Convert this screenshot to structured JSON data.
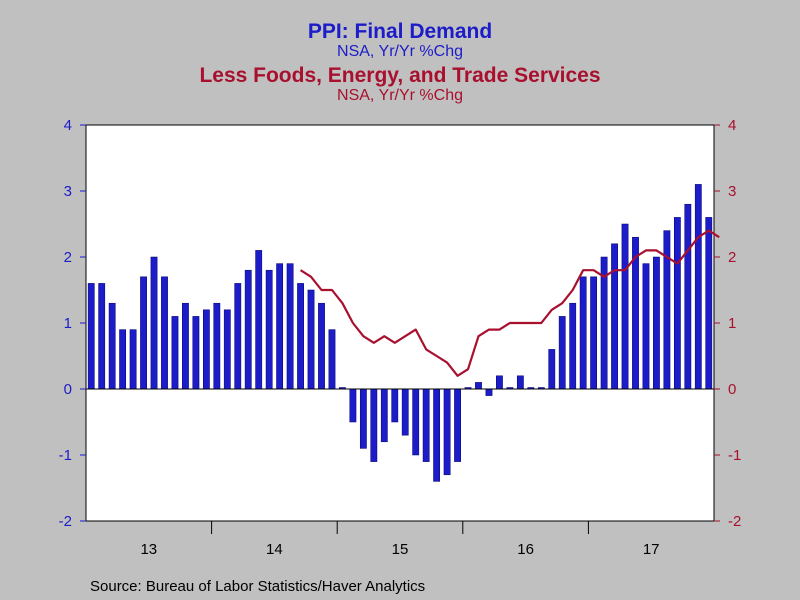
{
  "title": "PPI: Final Demand",
  "subtitle": "NSA, Yr/Yr %Chg",
  "title2": "Less Foods, Energy, and Trade Services",
  "subtitle2": "NSA, Yr/Yr %Chg",
  "source": "Source:  Bureau of Labor Statistics/Haver Analytics",
  "colors": {
    "bar": "#1c1cc8",
    "line": "#a8102e",
    "plot_bg": "#ffffff",
    "page_bg": "#c0c0c0"
  },
  "chart_data": {
    "type": "bar",
    "x_ticks": [
      "13",
      "14",
      "15",
      "16",
      "17"
    ],
    "ylim": [
      -2,
      4
    ],
    "y_ticks": [
      "4",
      "3",
      "2",
      "1",
      "0",
      "-1",
      "-2"
    ],
    "y2_ticks": [
      "4",
      "3",
      "2",
      "1",
      "0",
      "-1",
      "-2"
    ],
    "grid": false,
    "series": [
      {
        "type": "bar",
        "axis": "left",
        "values": [
          1.6,
          1.6,
          1.3,
          0.9,
          0.9,
          1.7,
          2.0,
          1.7,
          1.1,
          1.3,
          1.1,
          1.2,
          1.3,
          1.2,
          1.6,
          1.8,
          2.1,
          1.8,
          1.9,
          1.9,
          1.6,
          1.5,
          1.3,
          0.9,
          0.0,
          -0.5,
          -0.9,
          -1.1,
          -0.8,
          -0.5,
          -0.7,
          -1.0,
          -1.1,
          -1.4,
          -1.3,
          -1.1,
          0.0,
          0.1,
          -0.1,
          0.2,
          0.0,
          0.2,
          0.0,
          0.0,
          0.6,
          1.1,
          1.3,
          1.7,
          1.7,
          2.0,
          2.2,
          2.5,
          2.3,
          1.9,
          2.0,
          2.4,
          2.6,
          2.8,
          3.1,
          2.6
        ]
      },
      {
        "type": "line",
        "axis": "right",
        "start_index": 20,
        "values": [
          1.8,
          1.7,
          1.5,
          1.5,
          1.3,
          1.0,
          0.8,
          0.7,
          0.8,
          0.7,
          0.8,
          0.9,
          0.6,
          0.5,
          0.4,
          0.2,
          0.3,
          0.8,
          0.9,
          0.9,
          1.0,
          1.0,
          1.0,
          1.0,
          1.2,
          1.3,
          1.5,
          1.8,
          1.8,
          1.7,
          1.8,
          1.8,
          2.0,
          2.1,
          2.1,
          2.0,
          1.9,
          2.1,
          2.3,
          2.4,
          2.3
        ]
      }
    ]
  }
}
